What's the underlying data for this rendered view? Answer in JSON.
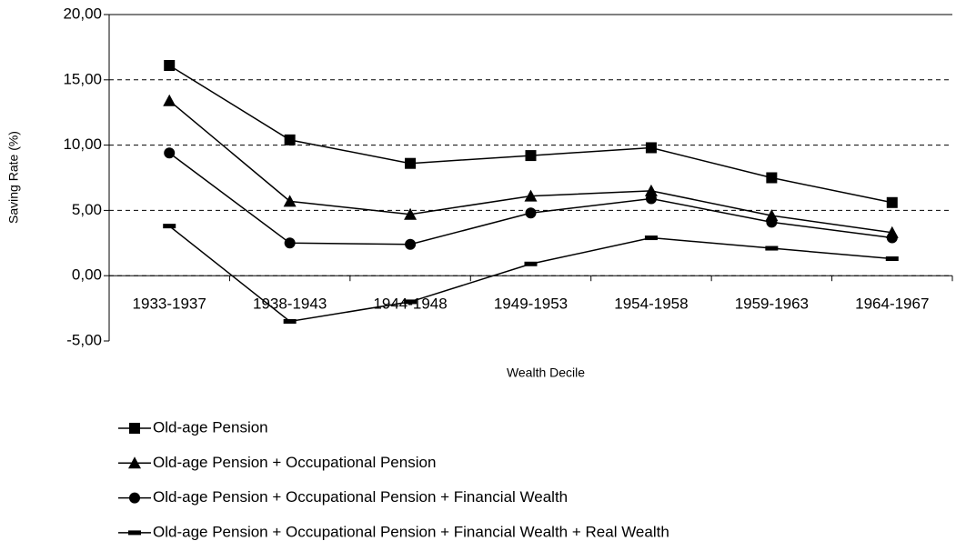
{
  "chart_data": {
    "type": "line",
    "y_label": "Saving Rate (%)",
    "x_label": "Wealth Decile",
    "categories": [
      "1933-1937",
      "1938-1943",
      "1944-1948",
      "1949-1953",
      "1954-1958",
      "1959-1963",
      "1964-1967"
    ],
    "series": [
      {
        "name": "Old-age Pension",
        "color": "#000000",
        "marker": "square",
        "values": [
          16.1,
          10.4,
          8.6,
          9.2,
          9.8,
          7.5,
          5.6
        ]
      },
      {
        "name": "Old-age Pension + Occupational Pension",
        "color": "#000000",
        "marker": "triangle",
        "values": [
          13.4,
          5.7,
          4.7,
          6.1,
          6.5,
          4.6,
          3.3
        ]
      },
      {
        "name": "Old-age Pension + Occupational Pension + Financial Wealth",
        "color": "#000000",
        "marker": "circle",
        "values": [
          9.4,
          2.5,
          2.4,
          4.8,
          5.9,
          4.1,
          2.9
        ]
      },
      {
        "name": "Old-age Pension + Occupational Pension + Financial Wealth + Real Wealth",
        "color": "#000000",
        "marker": "dash",
        "values": [
          3.8,
          -3.5,
          -2.0,
          0.9,
          2.9,
          2.1,
          1.3
        ]
      }
    ],
    "ylim": [
      -5,
      20
    ],
    "yticks": [
      {
        "value": -5,
        "label": "-5,00"
      },
      {
        "value": 0,
        "label": "0,00"
      },
      {
        "value": 5,
        "label": "5,00"
      },
      {
        "value": 10,
        "label": "10,00"
      },
      {
        "value": 15,
        "label": "15,00"
      },
      {
        "value": 20,
        "label": "20,00"
      }
    ],
    "grid": true,
    "legend": "bottom"
  }
}
